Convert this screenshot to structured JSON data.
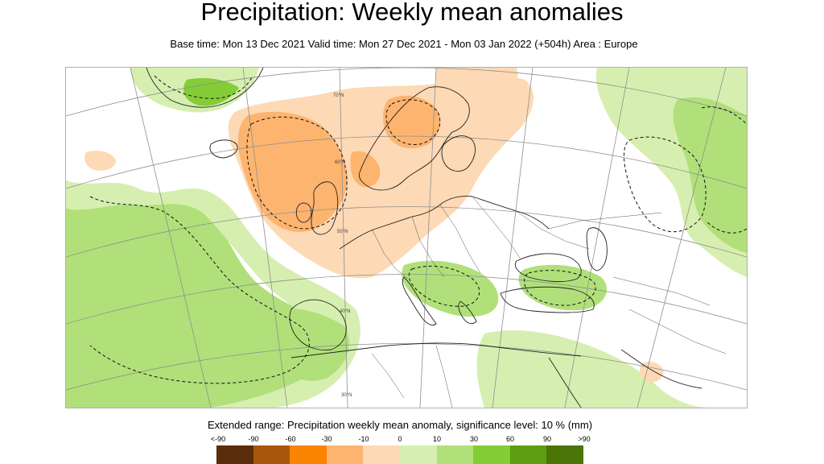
{
  "header": {
    "title": "Precipitation: Weekly mean anomalies",
    "subtitle": "Base time: Mon 13 Dec 2021 Valid time: Mon 27 Dec 2021 - Mon 03 Jan 2022 (+504h) Area : Europe"
  },
  "map": {
    "region": "Europe",
    "graticule_labels": [
      "70°N",
      "60°N",
      "50°N",
      "40°N",
      "30°N"
    ]
  },
  "legend": {
    "caption": "Extended range: Precipitation weekly mean anomaly, significance level: 10 % (mm)",
    "ticks": [
      "<-90",
      "-90",
      "-60",
      "-30",
      "-10",
      "0",
      "10",
      "30",
      "60",
      "90",
      ">90"
    ],
    "colors": [
      "#5a2d0c",
      "#a8560c",
      "#fb8402",
      "#fdb46f",
      "#fdd9b5",
      "#d6efb0",
      "#b1e07a",
      "#84cd36",
      "#5e9e12",
      "#4a7507"
    ]
  }
}
